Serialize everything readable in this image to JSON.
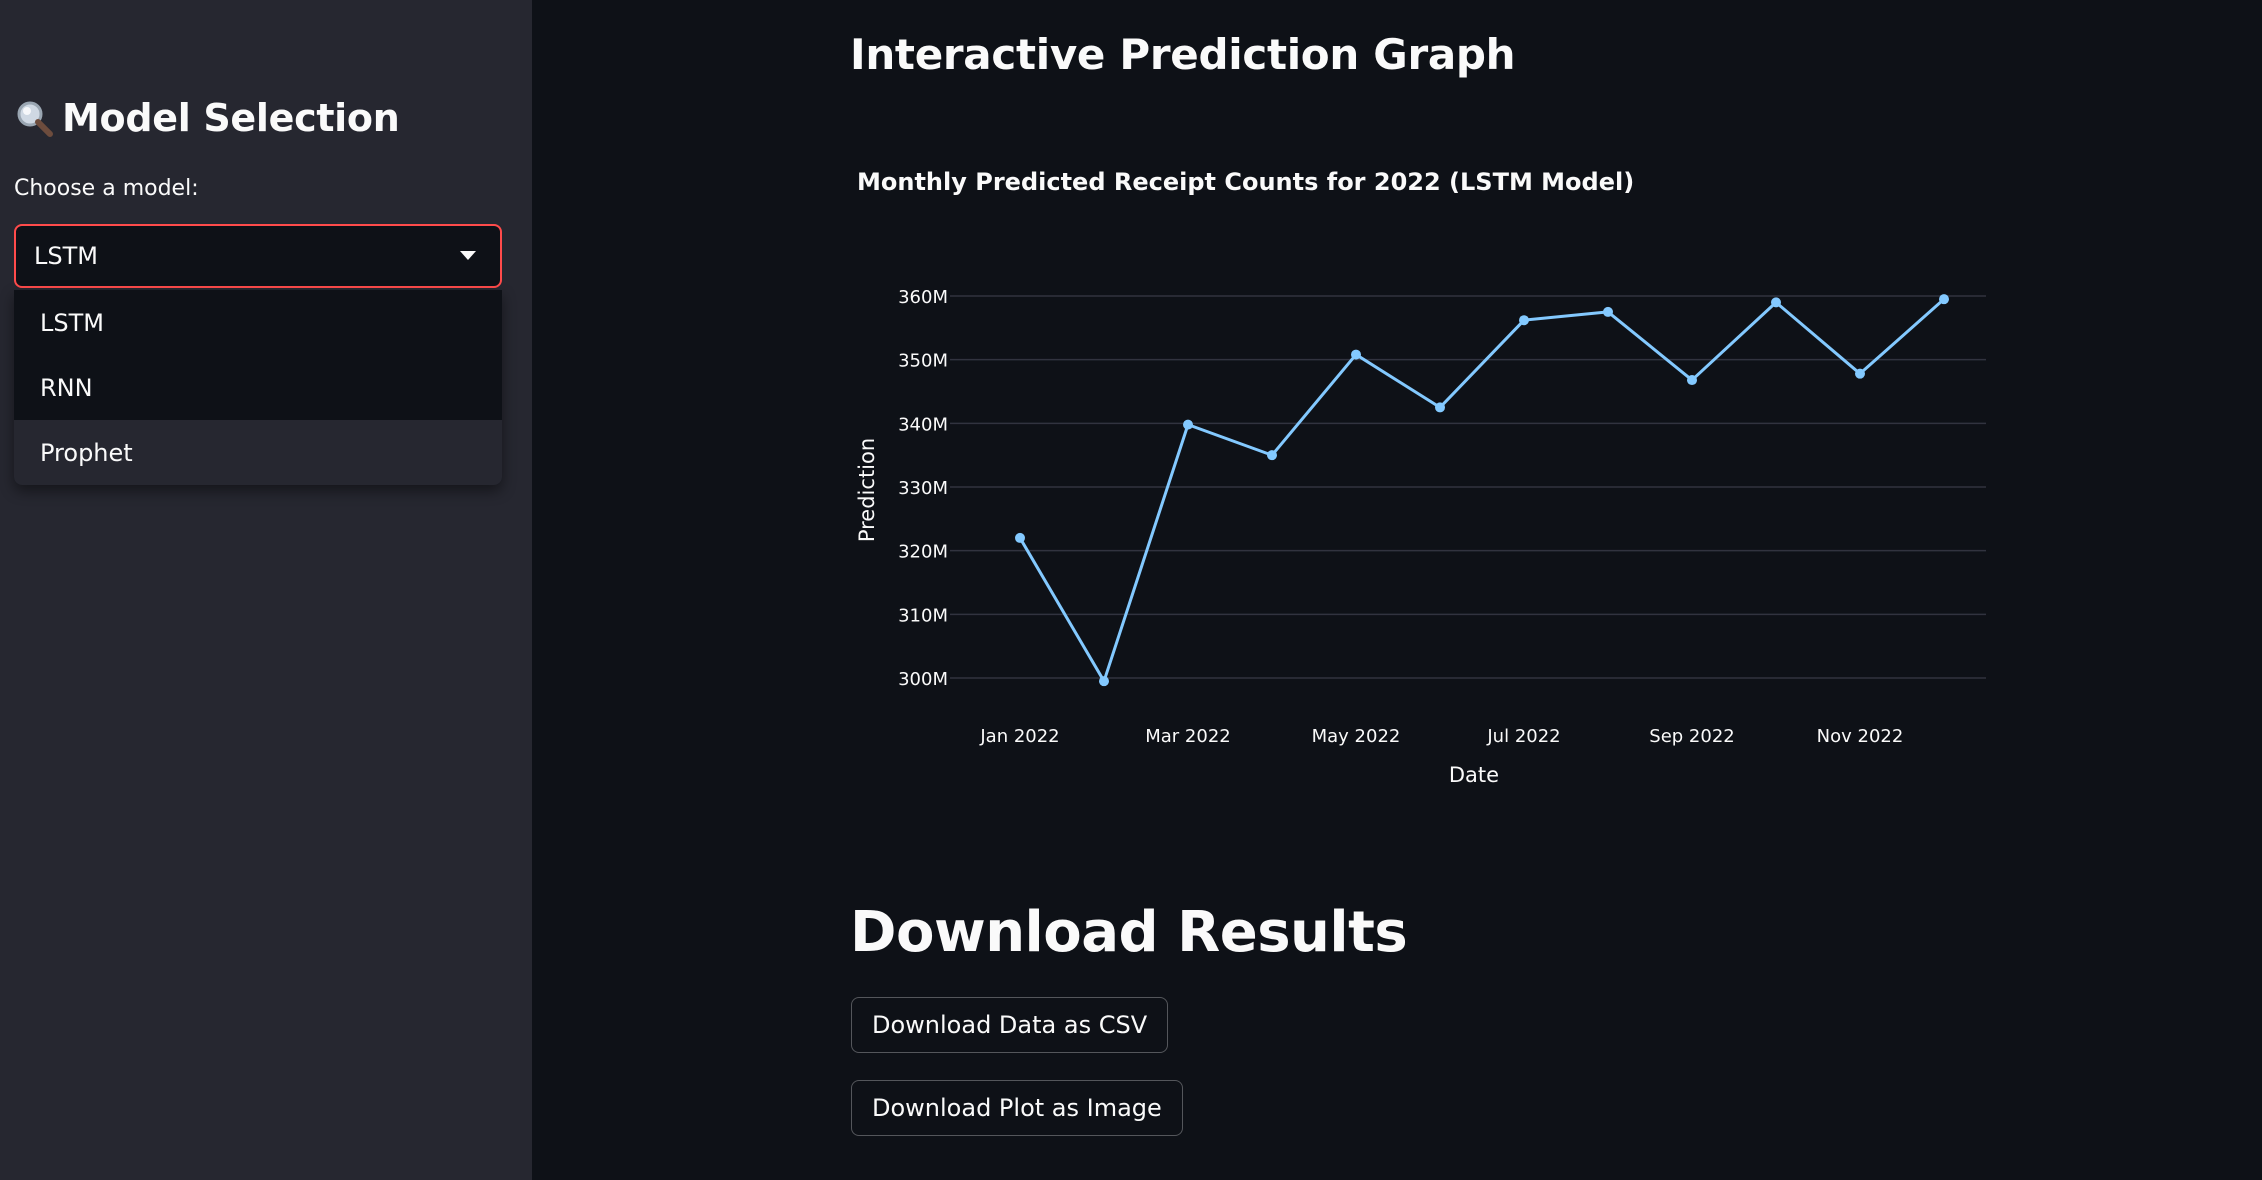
{
  "sidebar": {
    "header_icon": "magnifier-icon",
    "header": "Model Selection",
    "select_label": "Choose a model:",
    "selected": "LSTM",
    "options": [
      "LSTM",
      "RNN",
      "Prophet"
    ]
  },
  "main": {
    "title": "Interactive Prediction Graph",
    "download_title": "Download Results",
    "download_csv_label": "Download Data as CSV",
    "download_image_label": "Download Plot as Image"
  },
  "colors": {
    "accent": "#ff4b4b",
    "line": "#83c9ff",
    "background": "#0e1117",
    "sidebar": "#262730"
  },
  "chart_data": {
    "type": "line",
    "title": "Monthly Predicted Receipt Counts for 2022 (LSTM Model)",
    "xlabel": "Date",
    "ylabel": "Prediction",
    "x": [
      "2022-01",
      "2022-02",
      "2022-03",
      "2022-04",
      "2022-05",
      "2022-06",
      "2022-07",
      "2022-08",
      "2022-09",
      "2022-10",
      "2022-11",
      "2022-12"
    ],
    "x_tick_labels": [
      "Jan 2022",
      "Mar 2022",
      "May 2022",
      "Jul 2022",
      "Sep 2022",
      "Nov 2022"
    ],
    "y_tick_labels": [
      "300M",
      "310M",
      "320M",
      "330M",
      "340M",
      "350M",
      "360M"
    ],
    "y_ticks": [
      300000000,
      310000000,
      320000000,
      330000000,
      340000000,
      350000000,
      360000000
    ],
    "series": [
      {
        "values": [
          322000000,
          299500000,
          339800000,
          335000000,
          350800000,
          342500000,
          356200000,
          357500000,
          346800000,
          359000000,
          347800000,
          359500000
        ]
      }
    ],
    "ylim": [
      300000000,
      360000000
    ],
    "grid": true,
    "legend": "none"
  }
}
